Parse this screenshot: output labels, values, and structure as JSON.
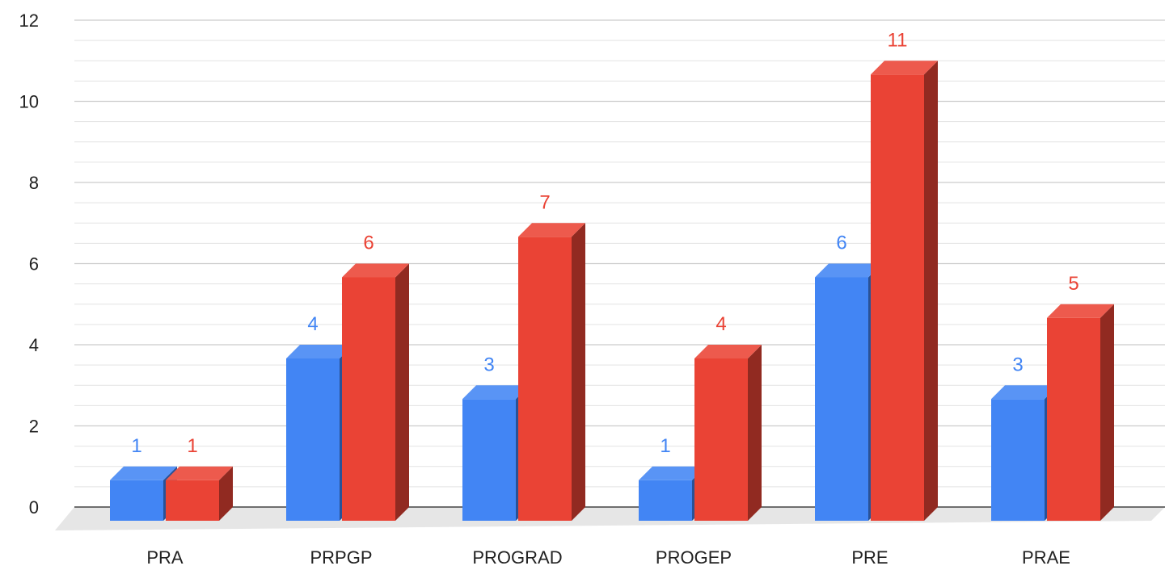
{
  "chart_data": {
    "type": "bar",
    "style": "3d-clustered-column",
    "categories": [
      "PRA",
      "PRPGP",
      "PROGRAD",
      "PROGEP",
      "PRE",
      "PRAE"
    ],
    "series": [
      {
        "color": "#4285f4",
        "values": [
          1,
          4,
          3,
          1,
          6,
          3
        ]
      },
      {
        "color": "#ea4335",
        "values": [
          1,
          6,
          7,
          4,
          11,
          5
        ]
      }
    ],
    "y_ticks": [
      "0",
      "2",
      "4",
      "6",
      "8",
      "10",
      "12"
    ],
    "ylim": [
      0,
      12
    ],
    "grid": true,
    "minor_grid": true,
    "legend": "none",
    "data_labels": true
  }
}
